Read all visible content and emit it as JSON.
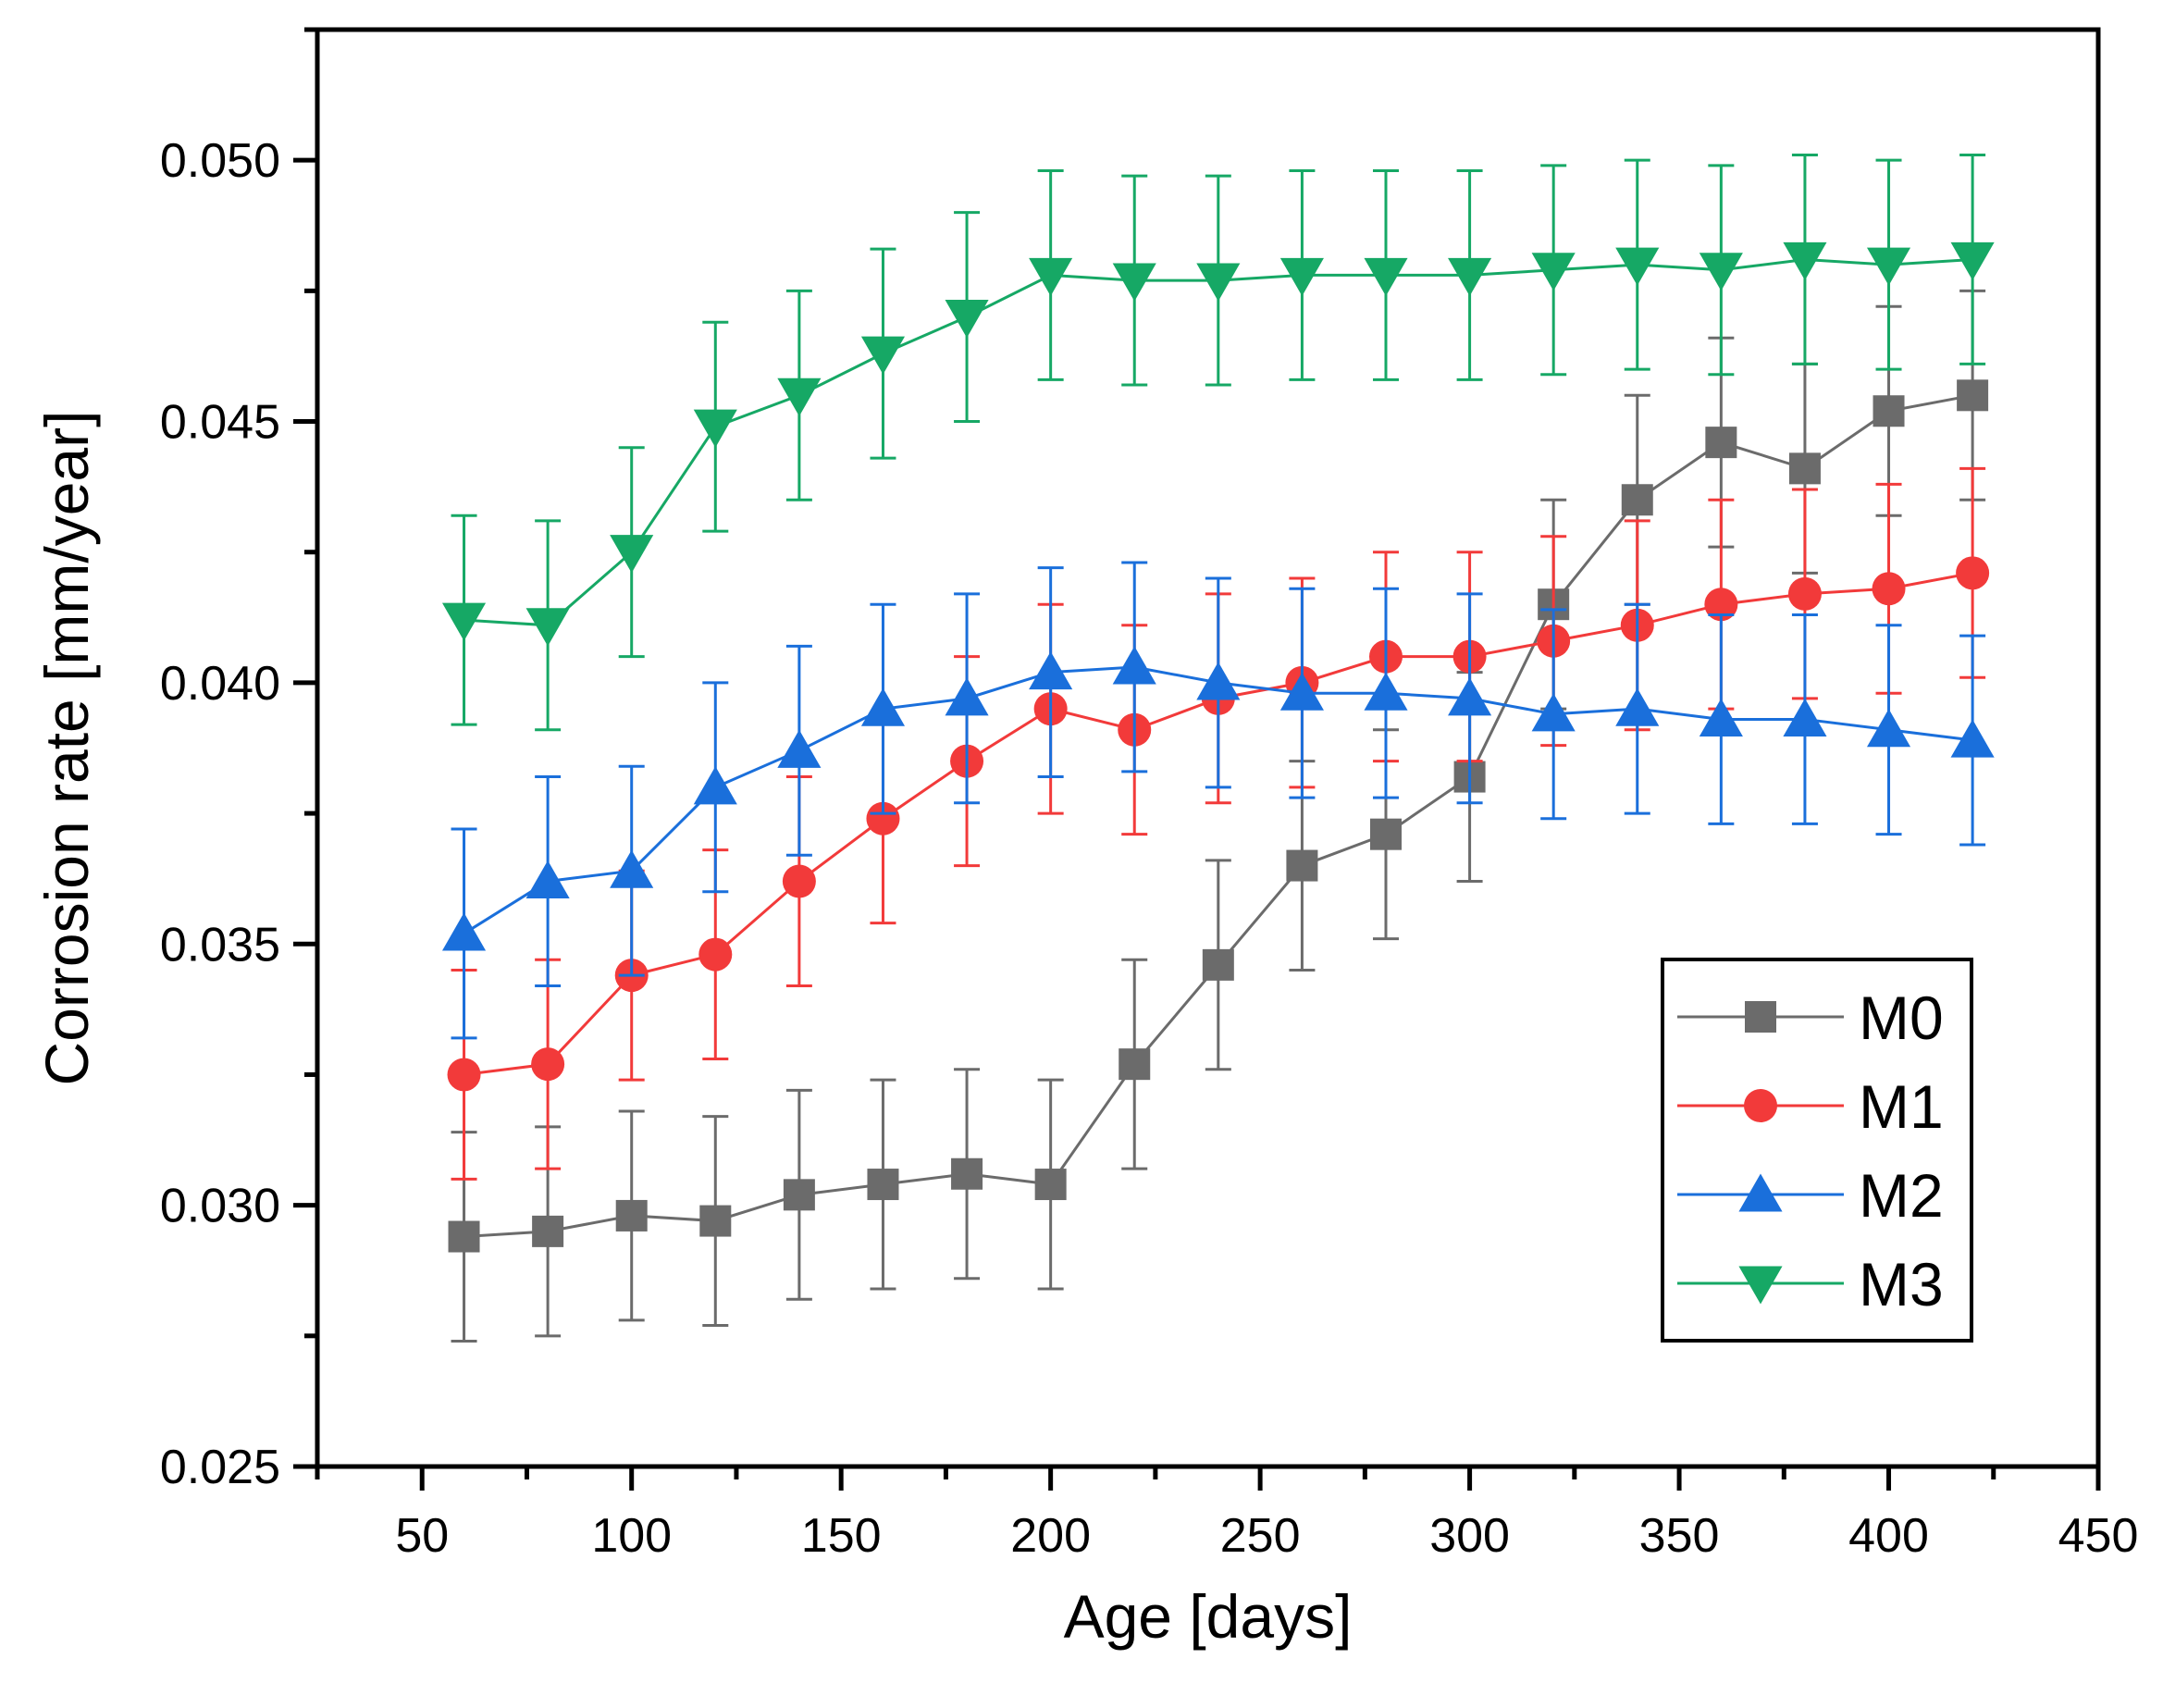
{
  "chart_data": {
    "type": "line",
    "title": "",
    "xlabel": "Age [days]",
    "ylabel": "Corrosion rate [mm/year]",
    "xlim": [
      25,
      450
    ],
    "ylim": [
      0.025,
      0.0525
    ],
    "xticks": [
      50,
      100,
      150,
      200,
      250,
      300,
      350,
      400,
      450
    ],
    "xtick_labels": [
      "50",
      "100",
      "150",
      "200",
      "250",
      "300",
      "350",
      "400",
      "450"
    ],
    "yticks": [
      0.025,
      0.03,
      0.035,
      0.04,
      0.045,
      0.05
    ],
    "ytick_labels": [
      "0.025",
      "0.030",
      "0.035",
      "0.040",
      "0.045",
      "0.050"
    ],
    "grid": false,
    "legend_position": "bottom-right",
    "x": [
      60,
      80,
      100,
      120,
      140,
      160,
      180,
      200,
      220,
      240,
      260,
      280,
      300,
      320,
      340,
      360,
      380,
      400,
      420
    ],
    "series": [
      {
        "name": "M0",
        "color": "#6b6b6b",
        "marker": "square",
        "values": [
          0.0294,
          0.0295,
          0.0298,
          0.0297,
          0.0302,
          0.0304,
          0.0306,
          0.0304,
          0.0327,
          0.0346,
          0.0365,
          0.0371,
          0.0382,
          0.0415,
          0.0435,
          0.0446,
          0.0441,
          0.0452,
          0.0455
        ],
        "error": 0.002
      },
      {
        "name": "M1",
        "color": "#f23a3a",
        "marker": "circle",
        "values": [
          0.0325,
          0.0327,
          0.0344,
          0.0348,
          0.0362,
          0.0374,
          0.0385,
          0.0395,
          0.0391,
          0.0397,
          0.04,
          0.0405,
          0.0405,
          0.0408,
          0.0411,
          0.0415,
          0.0417,
          0.0418,
          0.0421
        ],
        "error": 0.002
      },
      {
        "name": "M2",
        "color": "#1a6fdb",
        "marker": "triangle-up",
        "values": [
          0.0352,
          0.0362,
          0.0364,
          0.038,
          0.0387,
          0.0395,
          0.0397,
          0.0402,
          0.0403,
          0.04,
          0.0398,
          0.0398,
          0.0397,
          0.0394,
          0.0395,
          0.0393,
          0.0393,
          0.0391,
          0.0389
        ],
        "error": 0.002
      },
      {
        "name": "M3",
        "color": "#16a865",
        "marker": "triangle-down",
        "values": [
          0.0412,
          0.0411,
          0.0425,
          0.0449,
          0.0455,
          0.0463,
          0.047,
          0.0478,
          0.0477,
          0.0477,
          0.0478,
          0.0478,
          0.0478,
          0.0479,
          0.048,
          0.0479,
          0.0481,
          0.048,
          0.0481
        ],
        "error": 0.002
      }
    ]
  }
}
